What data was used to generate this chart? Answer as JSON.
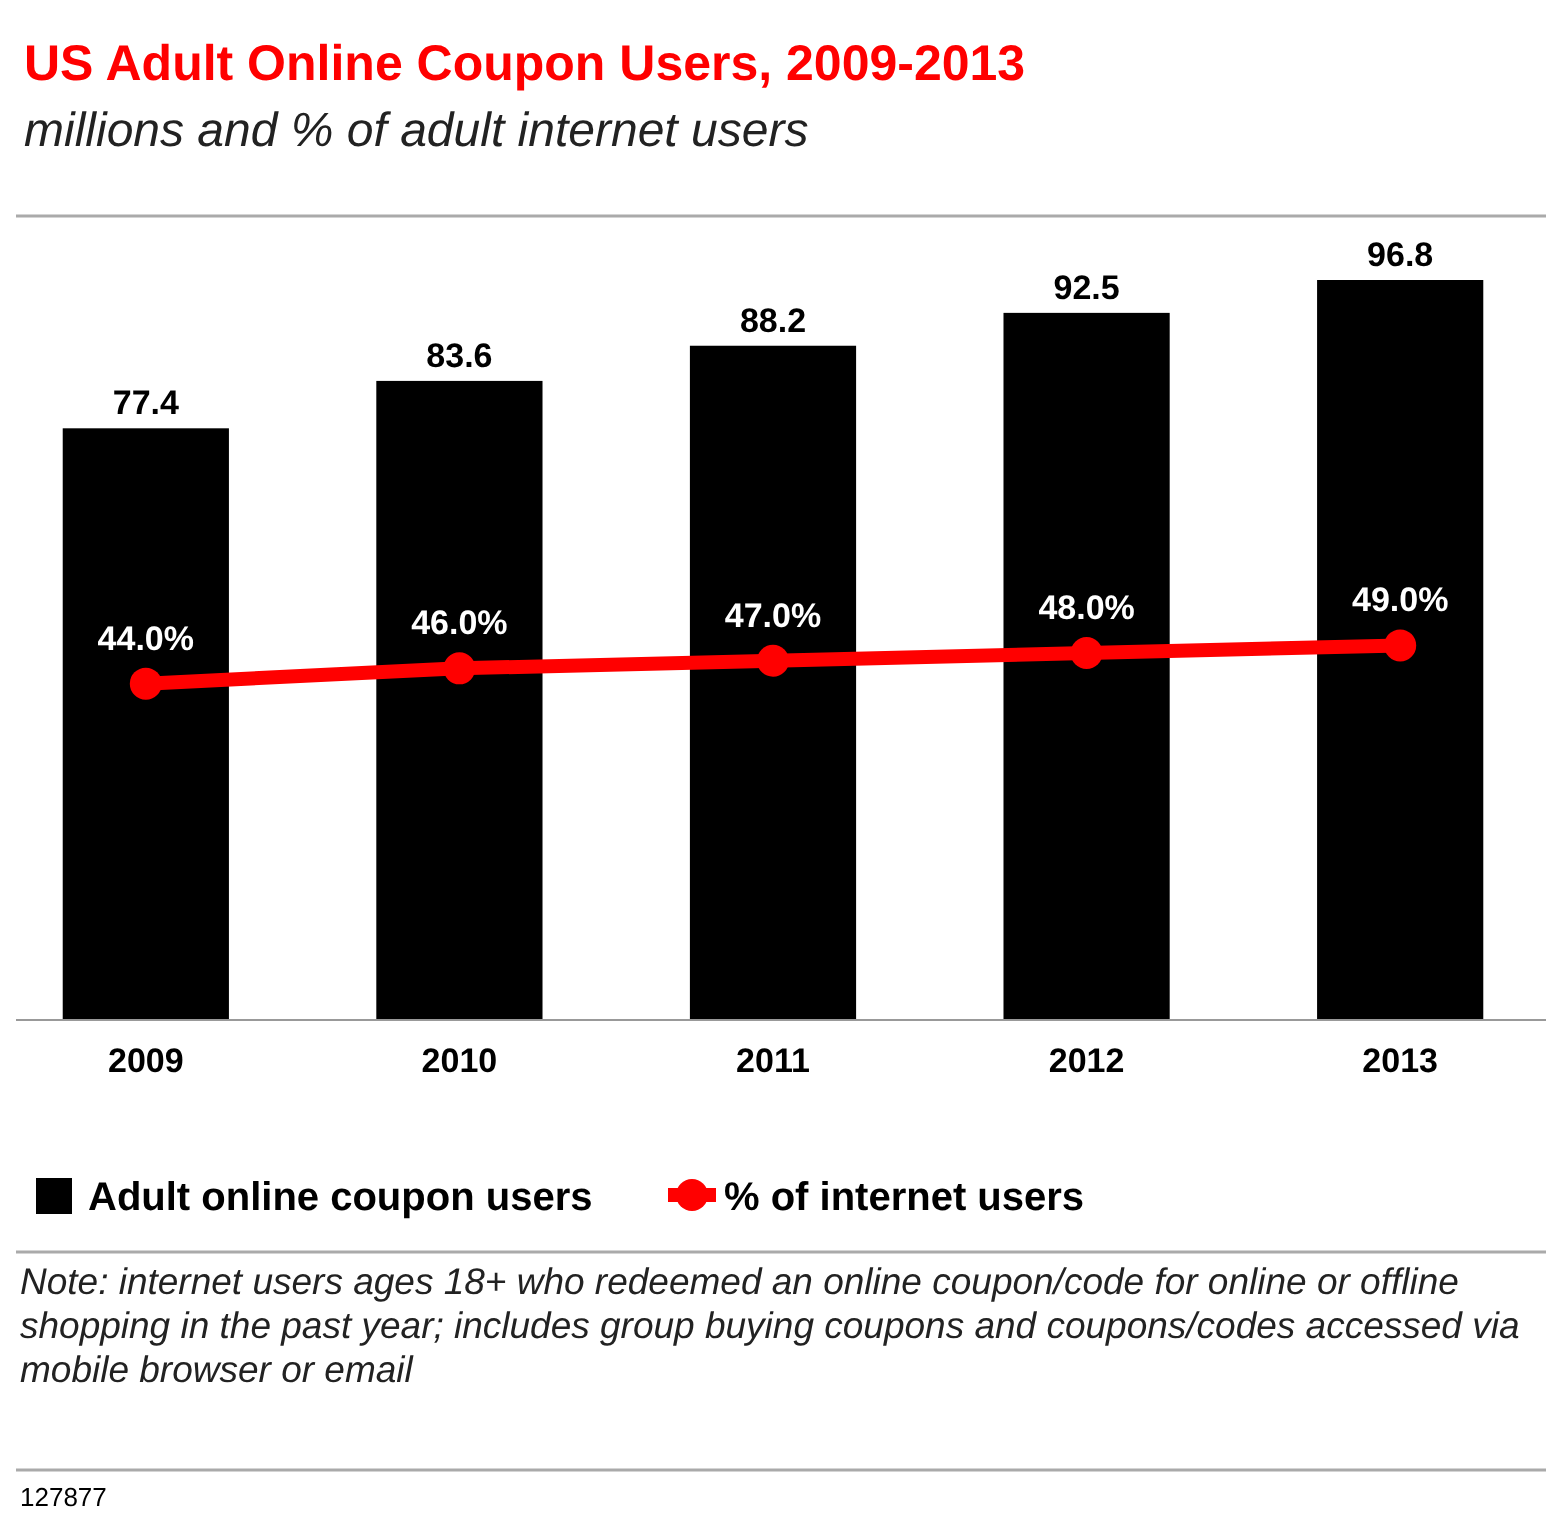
{
  "chart_data": {
    "type": "bar",
    "title": "US Adult Online Coupon Users, 2009-2013",
    "subtitle": "millions and % of adult internet users",
    "categories": [
      "2009",
      "2010",
      "2011",
      "2012",
      "2013"
    ],
    "series": [
      {
        "name": "Adult online coupon users",
        "color": "#000000",
        "values": [
          77.4,
          83.6,
          88.2,
          92.5,
          96.8
        ]
      },
      {
        "name": "% of internet users",
        "type": "line",
        "color": "#ff0000",
        "marker": "circle",
        "values": [
          44.0,
          46.0,
          47.0,
          48.0,
          49.0
        ],
        "value_labels": [
          "44.0%",
          "46.0%",
          "47.0%",
          "48.0%",
          "49.0%"
        ]
      }
    ],
    "data_labels": true,
    "legend": "bottom",
    "grid": false,
    "annotations": [
      "Note: internet users ages 18+ who redeemed an online coupon/code for online or offline shopping in the past year; includes group buying coupons and coupons/codes accessed via mobile browser or email",
      "127877"
    ]
  }
}
